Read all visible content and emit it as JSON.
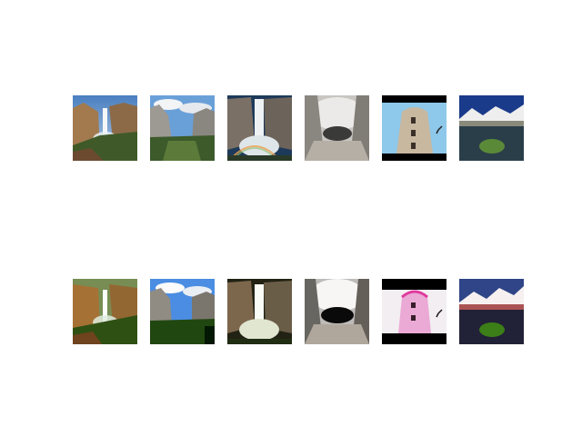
{
  "figure": {
    "rows": [
      {
        "name": "original-row",
        "images": [
          {
            "subject": "waterfall-cliff"
          },
          {
            "subject": "valley-cliffs"
          },
          {
            "subject": "waterfall-rainbow"
          },
          {
            "subject": "fisheye-sky"
          },
          {
            "subject": "round-tower"
          },
          {
            "subject": "mountain-lake"
          }
        ]
      },
      {
        "name": "reconstruction-row",
        "images": [
          {
            "subject": "waterfall-cliff"
          },
          {
            "subject": "valley-cliffs"
          },
          {
            "subject": "waterfall-rainbow"
          },
          {
            "subject": "fisheye-sky"
          },
          {
            "subject": "round-tower"
          },
          {
            "subject": "mountain-lake"
          }
        ]
      }
    ]
  }
}
